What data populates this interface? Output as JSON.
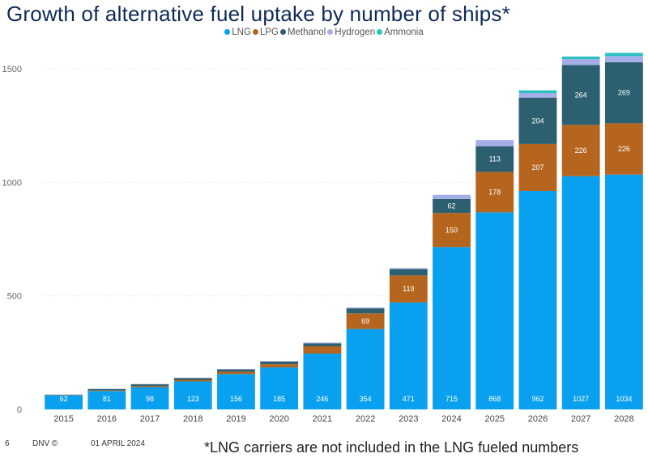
{
  "title": "Growth of alternative fuel uptake by number of ships*",
  "footer": {
    "page": "6",
    "brand": "DNV ©",
    "date": "01 APRIL 2024"
  },
  "footnote": "*LNG carriers are not included in the LNG fueled numbers",
  "chart_data": {
    "type": "bar",
    "stacked": true,
    "title": "Growth of alternative fuel uptake by number of ships*",
    "categories": [
      "2015",
      "2016",
      "2017",
      "2018",
      "2019",
      "2020",
      "2021",
      "2022",
      "2023",
      "2024",
      "2025",
      "2026",
      "2027",
      "2028"
    ],
    "series": [
      {
        "name": "LNG",
        "color": "#0aa0f0",
        "values": [
          62,
          81,
          98,
          123,
          156,
          185,
          246,
          354,
          471,
          715,
          868,
          962,
          1027,
          1034
        ],
        "labels": [
          "62",
          "81",
          "98",
          "123",
          "156",
          "185",
          "246",
          "354",
          "471",
          "715",
          "868",
          "962",
          "1027",
          "1034"
        ]
      },
      {
        "name": "LPG",
        "color": "#b5651d",
        "values": [
          1,
          3,
          5,
          7,
          10,
          14,
          32,
          69,
          119,
          150,
          178,
          207,
          226,
          226
        ],
        "labels": [
          "",
          "",
          "",
          "",
          "",
          "",
          "",
          "69",
          "119",
          "150",
          "178",
          "207",
          "226",
          "226"
        ]
      },
      {
        "name": "Methanol",
        "color": "#2c5f70",
        "values": [
          2,
          6,
          8,
          8,
          10,
          12,
          13,
          22,
          28,
          62,
          113,
          204,
          264,
          269
        ],
        "labels": [
          "",
          "",
          "",
          "",
          "",
          "",
          "",
          "",
          "",
          "62",
          "113",
          "204",
          "264",
          "269"
        ]
      },
      {
        "name": "Hydrogen",
        "color": "#a5aee8",
        "values": [
          0,
          1,
          1,
          2,
          2,
          2,
          3,
          4,
          4,
          18,
          27,
          20,
          25,
          27
        ],
        "labels": []
      },
      {
        "name": "Ammonia",
        "color": "#2bc0c0",
        "values": [
          0,
          0,
          0,
          0,
          0,
          0,
          0,
          0,
          0,
          0,
          0,
          12,
          12,
          14
        ],
        "labels": []
      }
    ],
    "yticks": [
      0,
      500,
      1000,
      1500
    ],
    "ylim": [
      0,
      1500
    ],
    "grid": true,
    "legend_position": "top-center"
  }
}
